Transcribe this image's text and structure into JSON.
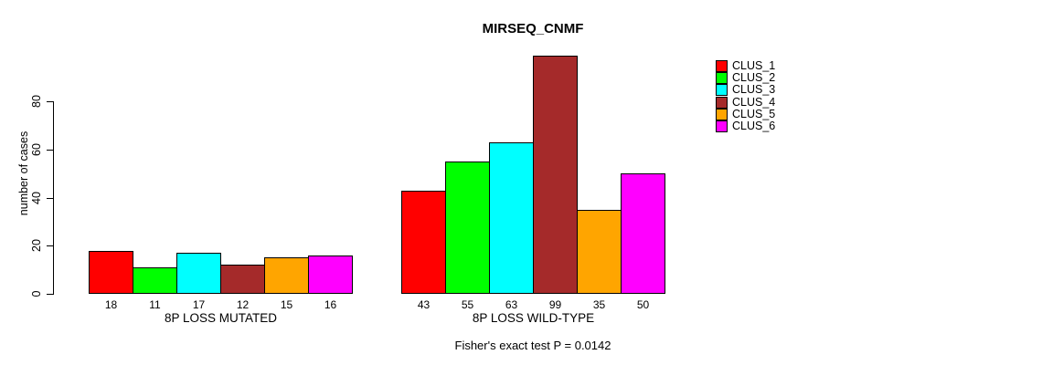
{
  "chart_data": {
    "type": "bar",
    "title": "MIRSEQ_CNMF",
    "ylabel": "number of cases",
    "yticks": [
      0,
      20,
      40,
      60,
      80
    ],
    "ylim": [
      0,
      100
    ],
    "grid": false,
    "legend_position": "top-right",
    "series_labels": [
      "CLUS_1",
      "CLUS_2",
      "CLUS_3",
      "CLUS_4",
      "CLUS_5",
      "CLUS_6"
    ],
    "series_colors": [
      "#ff0000",
      "#00ff00",
      "#00ffff",
      "#a52a2a",
      "#ffa500",
      "#ff00ff"
    ],
    "groups": [
      {
        "label": "8P LOSS MUTATED",
        "values": [
          18,
          11,
          17,
          12,
          15,
          16
        ]
      },
      {
        "label": "8P LOSS WILD-TYPE",
        "values": [
          43,
          55,
          63,
          99,
          35,
          50
        ]
      }
    ],
    "value_labels_shown": true,
    "footnote": "Fisher's exact test P = 0.0142"
  }
}
